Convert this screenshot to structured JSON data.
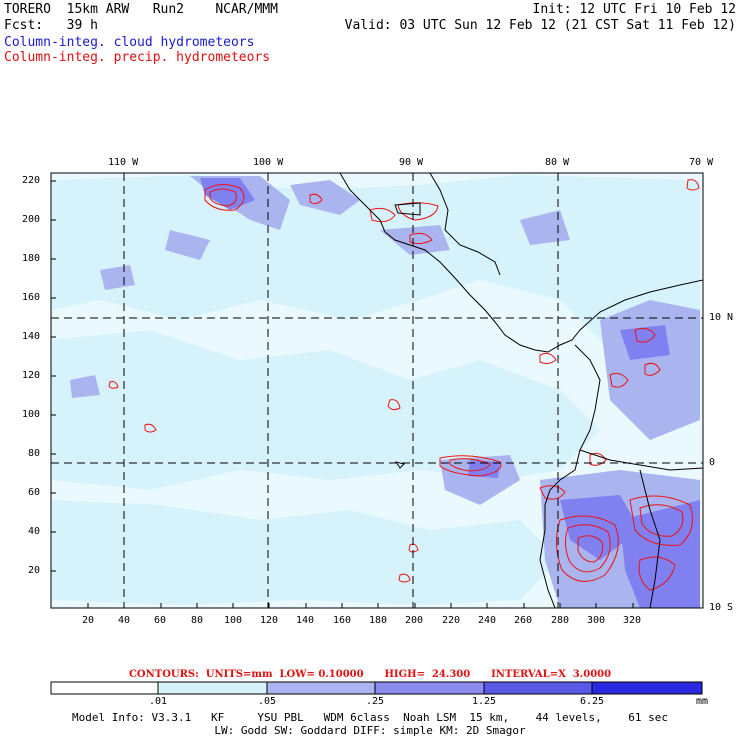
{
  "header": {
    "model_line": "TORERO  15km ARW   Run2    NCAR/MMM",
    "init": "Init: 12 UTC Fri 10 Feb 12",
    "fcst": "Fcst:   39 h",
    "valid": "Valid: 03 UTC Sun 12 Feb 12 (21 CST Sat 11 Feb 12)",
    "field1": "Column-integ. cloud hydrometeors",
    "field2": "Column-integ. precip. hydrometeors"
  },
  "map": {
    "top_lon_labels": [
      "110 W",
      "100 W",
      "90 W",
      "80 W",
      "70 W"
    ],
    "right_lat_labels": [
      "10 N",
      "0",
      "10 S"
    ],
    "left_y_ticks": [
      "220",
      "200",
      "180",
      "160",
      "140",
      "120",
      "100",
      "80",
      "60",
      "40",
      "20"
    ],
    "bottom_x_ticks": [
      "20",
      "40",
      "60",
      "80",
      "100",
      "120",
      "140",
      "160",
      "180",
      "200",
      "220",
      "240",
      "260",
      "280",
      "300",
      "320"
    ],
    "colors": {
      "land_line": "#000000",
      "cloud_light": "#d6f3fb",
      "cloud_mid": "#aab4ee",
      "cloud_dark": "#7c80f0",
      "precip_contour": "#ee1111"
    }
  },
  "contour_info": "CONTOURS:  UNITS=mm  LOW= 0.10000      HIGH=  24.300      INTERVAL=X  3.0000",
  "colorbar": {
    "labels": [
      ".01",
      ".05",
      ".25",
      "1.25",
      "6.25"
    ],
    "unit": "mm",
    "colors": [
      "#ffffff",
      "#d6f3fb",
      "#aab4ee",
      "#8c8cf0",
      "#5a5ae8",
      "#2a2ae0"
    ]
  },
  "model_info": {
    "line1": "Model Info: V3.3.1   KF     YSU PBL   WDM 6class  Noah LSM  15 km,    44 levels,    61 sec",
    "line2": "LW: Godd SW: Goddard DIFF: simple KM: 2D Smagor"
  }
}
